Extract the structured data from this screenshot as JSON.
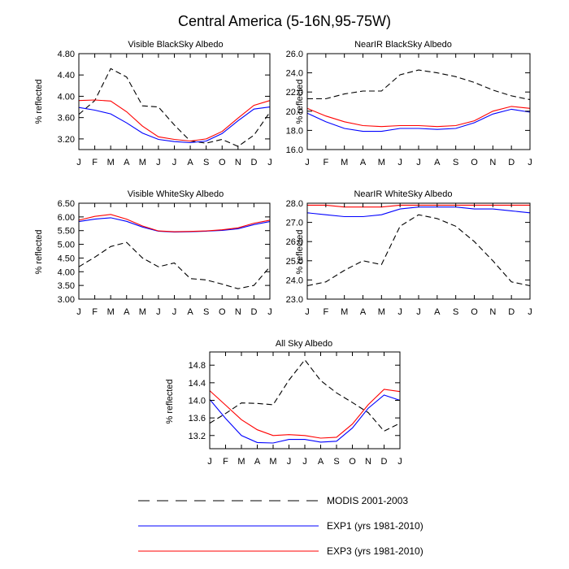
{
  "figure": {
    "title": "Central America (5-16N,95-75W)"
  },
  "legend": {
    "entries": [
      {
        "label": "MODIS 2001-2003",
        "color": "#000000",
        "dash": true
      },
      {
        "label": "EXP1 (yrs 1981-2010)",
        "color": "#0000ff",
        "dash": false
      },
      {
        "label": "EXP3 (yrs 1981-2010)",
        "color": "#ff0000",
        "dash": false
      }
    ]
  },
  "chart_data": [
    {
      "type": "line",
      "title": "Visible BlackSky Albedo",
      "ylabel": "% reflected",
      "categories": [
        "J",
        "F",
        "M",
        "A",
        "M",
        "J",
        "J",
        "A",
        "S",
        "O",
        "N",
        "D",
        "J"
      ],
      "ylim": [
        3.0,
        4.8
      ],
      "yticks": [
        "3.20",
        "3.60",
        "4.00",
        "4.40",
        "4.80"
      ],
      "series": [
        {
          "name": "MODIS 2001-2003",
          "color": "#000000",
          "dash": true,
          "values": [
            3.66,
            3.92,
            4.52,
            4.36,
            3.82,
            3.8,
            3.46,
            3.16,
            3.12,
            3.19,
            3.06,
            3.27,
            3.7
          ]
        },
        {
          "name": "EXP1 (yrs 1981-2010)",
          "color": "#0000ff",
          "dash": false,
          "values": [
            3.79,
            3.74,
            3.67,
            3.5,
            3.31,
            3.19,
            3.15,
            3.13,
            3.16,
            3.3,
            3.54,
            3.76,
            3.8
          ]
        },
        {
          "name": "EXP3 (yrs 1981-2010)",
          "color": "#ff0000",
          "dash": false,
          "values": [
            3.92,
            3.93,
            3.91,
            3.71,
            3.44,
            3.24,
            3.19,
            3.16,
            3.2,
            3.34,
            3.59,
            3.83,
            3.92
          ]
        }
      ]
    },
    {
      "type": "line",
      "title": "NearIR BlackSky Albedo",
      "ylabel": "% reflected",
      "categories": [
        "J",
        "F",
        "M",
        "A",
        "M",
        "J",
        "J",
        "A",
        "S",
        "O",
        "N",
        "D",
        "J"
      ],
      "ylim": [
        16.0,
        26.0
      ],
      "yticks": [
        "16.0",
        "18.0",
        "20.0",
        "22.0",
        "24.0",
        "26.0"
      ],
      "series": [
        {
          "name": "MODIS 2001-2003",
          "color": "#000000",
          "dash": true,
          "values": [
            21.3,
            21.3,
            21.8,
            22.1,
            22.1,
            23.8,
            24.3,
            24.0,
            23.6,
            23.0,
            22.2,
            21.6,
            21.2
          ]
        },
        {
          "name": "EXP1 (yrs 1981-2010)",
          "color": "#0000ff",
          "dash": false,
          "values": [
            19.8,
            18.9,
            18.2,
            17.9,
            17.9,
            18.2,
            18.2,
            18.1,
            18.2,
            18.8,
            19.7,
            20.2,
            19.9
          ]
        },
        {
          "name": "EXP3 (yrs 1981-2010)",
          "color": "#ff0000",
          "dash": false,
          "values": [
            20.3,
            19.5,
            18.9,
            18.5,
            18.4,
            18.5,
            18.5,
            18.4,
            18.5,
            19.0,
            20.0,
            20.5,
            20.3
          ]
        }
      ]
    },
    {
      "type": "line",
      "title": "Visible WhiteSky Albedo",
      "ylabel": "% reflected",
      "categories": [
        "J",
        "F",
        "M",
        "A",
        "M",
        "J",
        "J",
        "A",
        "S",
        "O",
        "N",
        "D",
        "J"
      ],
      "ylim": [
        3.0,
        6.5
      ],
      "yticks": [
        "3.00",
        "3.50",
        "4.00",
        "4.50",
        "5.00",
        "5.50",
        "6.00",
        "6.50"
      ],
      "series": [
        {
          "name": "MODIS 2001-2003",
          "color": "#000000",
          "dash": true,
          "values": [
            4.18,
            4.53,
            4.92,
            5.07,
            4.5,
            4.18,
            4.32,
            3.75,
            3.7,
            3.55,
            3.38,
            3.5,
            4.18
          ]
        },
        {
          "name": "EXP1 (yrs 1981-2010)",
          "color": "#0000ff",
          "dash": false,
          "values": [
            5.83,
            5.92,
            5.97,
            5.84,
            5.63,
            5.48,
            5.45,
            5.46,
            5.48,
            5.51,
            5.57,
            5.72,
            5.83
          ]
        },
        {
          "name": "EXP3 (yrs 1981-2010)",
          "color": "#ff0000",
          "dash": false,
          "values": [
            5.88,
            6.02,
            6.09,
            5.92,
            5.67,
            5.49,
            5.46,
            5.47,
            5.49,
            5.53,
            5.6,
            5.77,
            5.88
          ]
        }
      ]
    },
    {
      "type": "line",
      "title": "NearIR WhiteSky Albedo",
      "ylabel": "% reflected",
      "categories": [
        "J",
        "F",
        "M",
        "A",
        "M",
        "J",
        "J",
        "A",
        "S",
        "O",
        "N",
        "D",
        "J"
      ],
      "ylim": [
        23.0,
        28.0
      ],
      "yticks": [
        "23.0",
        "24.0",
        "25.0",
        "26.0",
        "27.0",
        "28.0"
      ],
      "series": [
        {
          "name": "MODIS 2001-2003",
          "color": "#000000",
          "dash": true,
          "values": [
            23.7,
            23.9,
            24.5,
            25.0,
            24.8,
            26.8,
            27.4,
            27.2,
            26.8,
            26.0,
            25.0,
            23.9,
            23.7
          ]
        },
        {
          "name": "EXP1 (yrs 1981-2010)",
          "color": "#0000ff",
          "dash": false,
          "values": [
            27.5,
            27.4,
            27.3,
            27.3,
            27.4,
            27.7,
            27.8,
            27.8,
            27.8,
            27.7,
            27.7,
            27.6,
            27.5
          ]
        },
        {
          "name": "EXP3 (yrs 1981-2010)",
          "color": "#ff0000",
          "dash": false,
          "values": [
            27.9,
            27.9,
            27.8,
            27.8,
            27.8,
            27.9,
            27.9,
            27.9,
            27.9,
            27.9,
            27.9,
            27.9,
            27.9
          ]
        }
      ]
    },
    {
      "type": "line",
      "title": "All Sky Albedo",
      "ylabel": "% reflected",
      "categories": [
        "J",
        "F",
        "M",
        "A",
        "M",
        "J",
        "J",
        "A",
        "S",
        "O",
        "N",
        "D",
        "J"
      ],
      "ylim": [
        12.9,
        15.1
      ],
      "yticks": [
        "13.2",
        "13.6",
        "14.0",
        "14.4",
        "14.8"
      ],
      "series": [
        {
          "name": "MODIS 2001-2003",
          "color": "#000000",
          "dash": true,
          "values": [
            13.48,
            13.7,
            13.94,
            13.93,
            13.9,
            14.46,
            14.92,
            14.45,
            14.17,
            13.95,
            13.72,
            13.3,
            13.48
          ]
        },
        {
          "name": "EXP1 (yrs 1981-2010)",
          "color": "#0000ff",
          "dash": false,
          "values": [
            14.02,
            13.59,
            13.2,
            13.04,
            13.03,
            13.11,
            13.11,
            13.05,
            13.07,
            13.37,
            13.82,
            14.12,
            14.0
          ]
        },
        {
          "name": "EXP3 (yrs 1981-2010)",
          "color": "#ff0000",
          "dash": false,
          "values": [
            14.22,
            13.89,
            13.56,
            13.33,
            13.2,
            13.22,
            13.2,
            13.14,
            13.16,
            13.46,
            13.9,
            14.25,
            14.2
          ]
        }
      ]
    }
  ]
}
